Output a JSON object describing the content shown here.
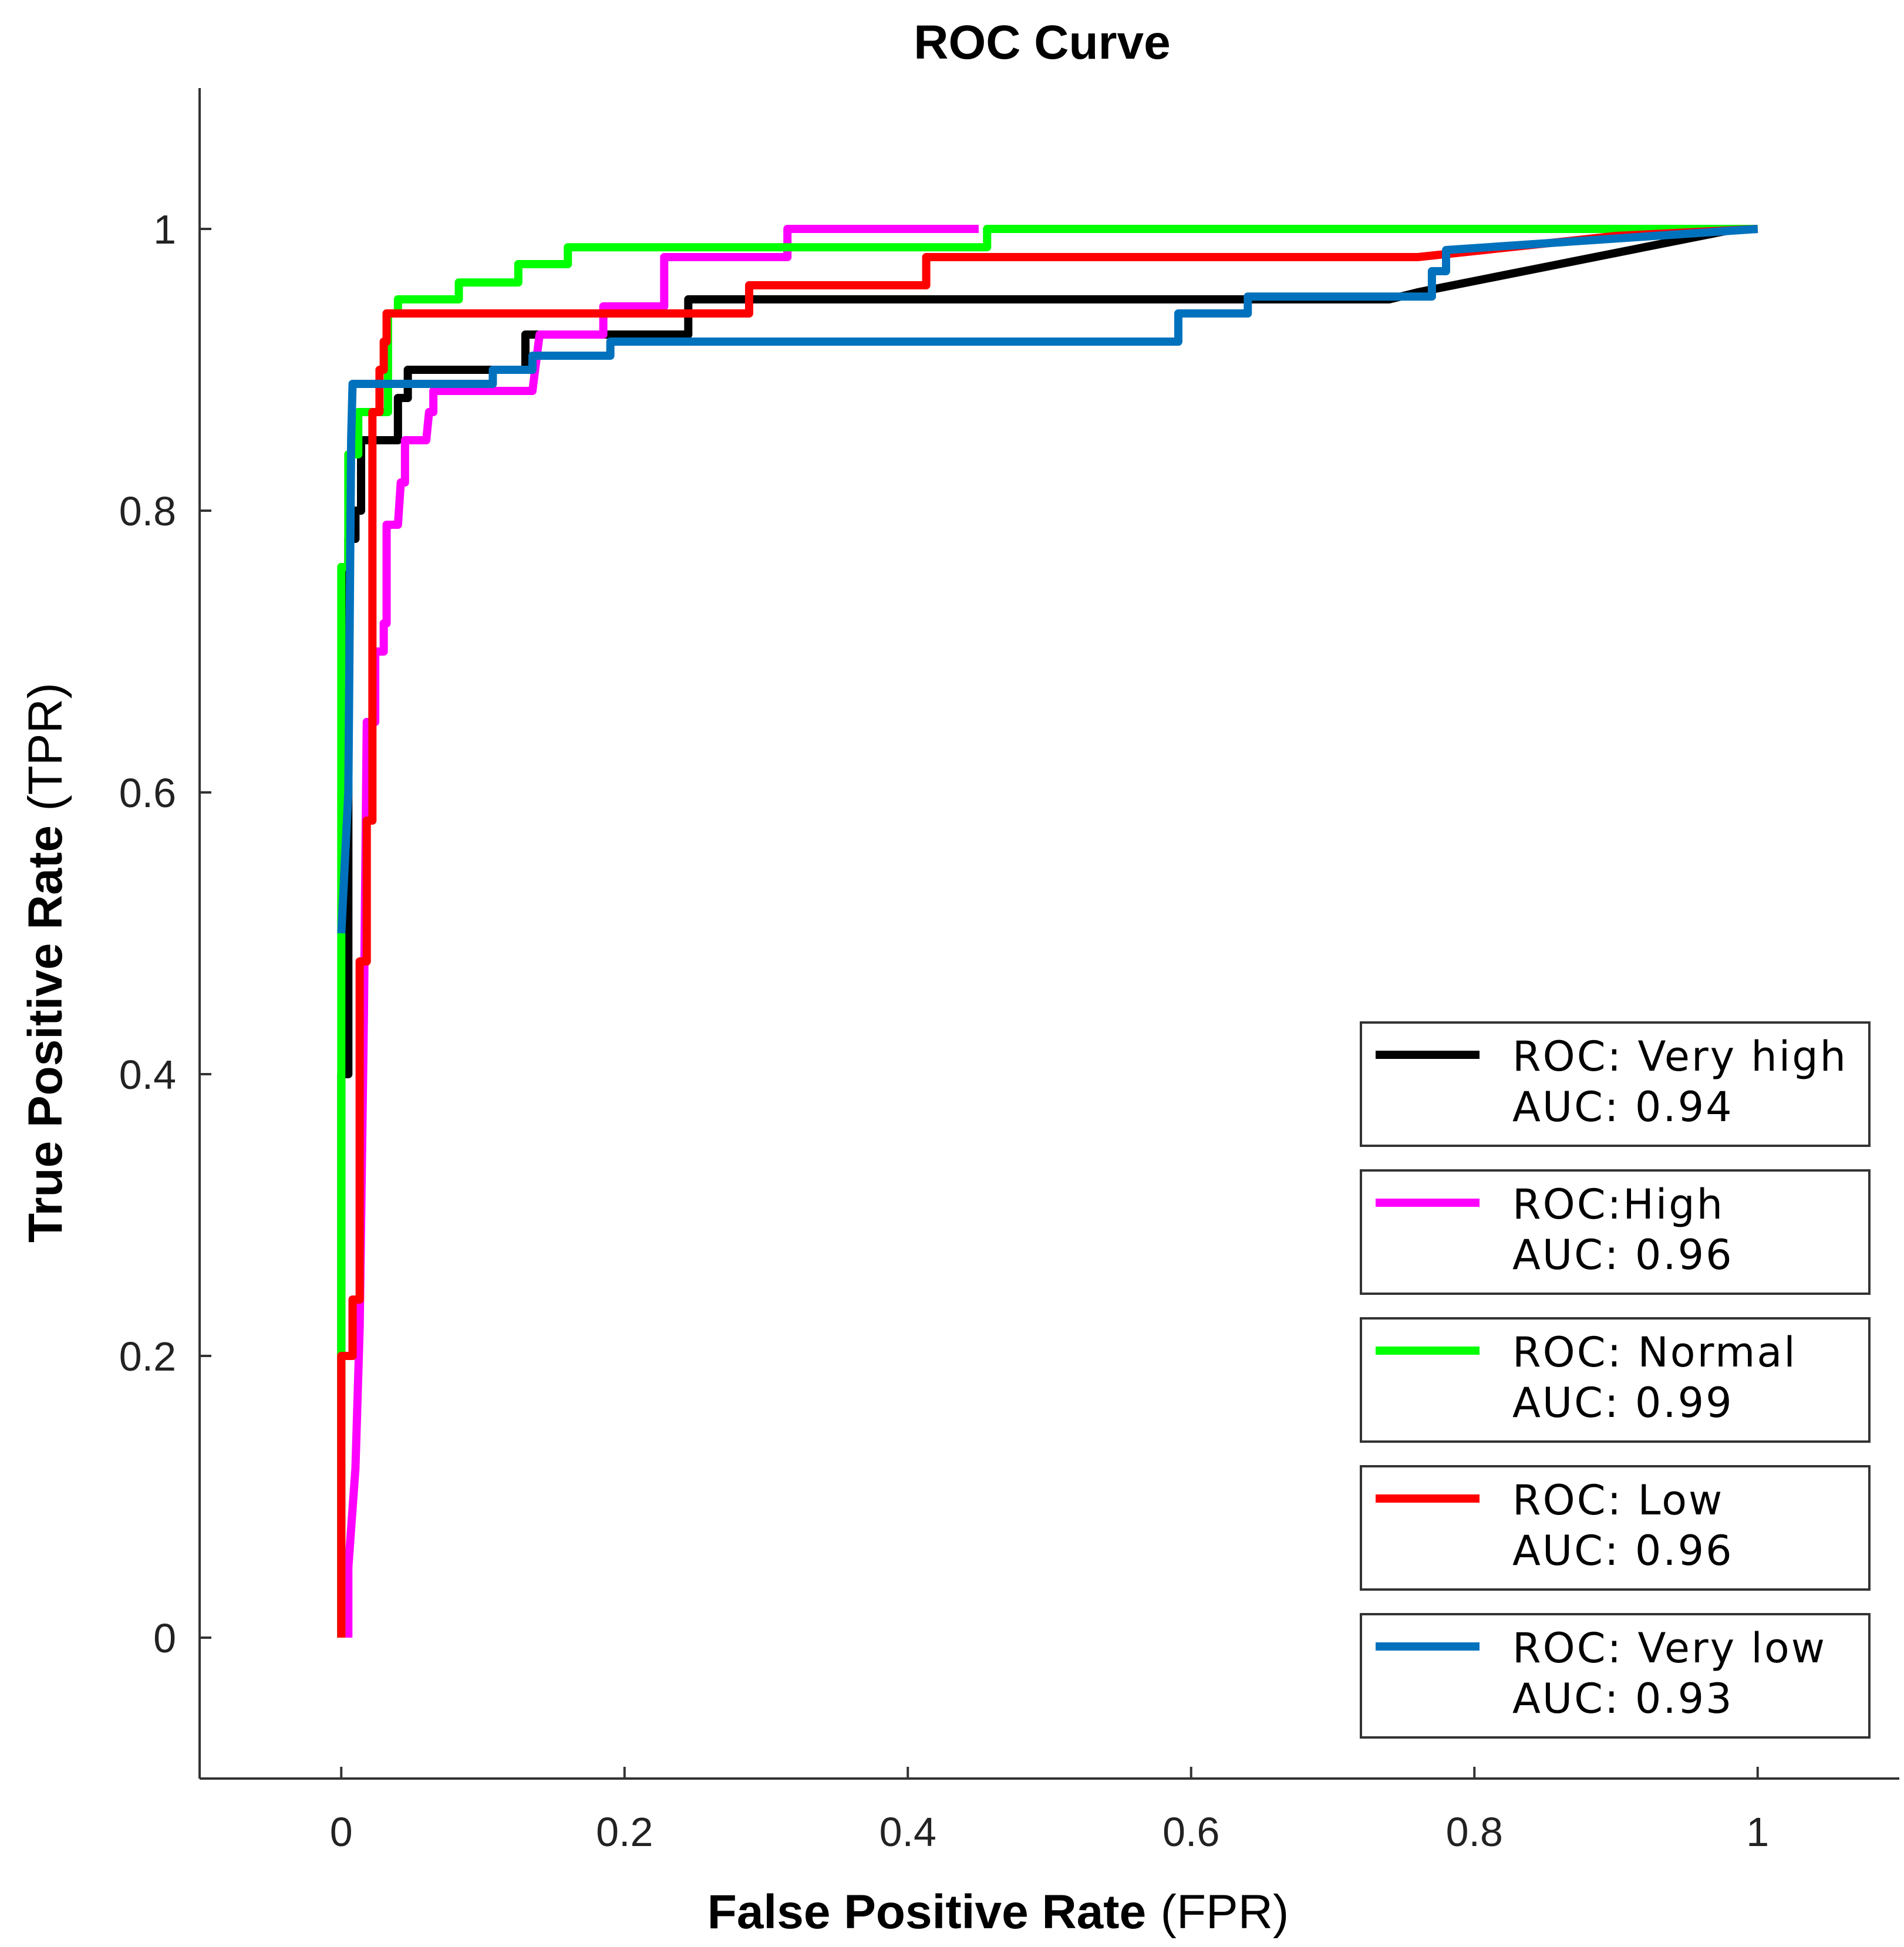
{
  "chart_data": {
    "type": "line",
    "title": "ROC Curve",
    "xlabel": {
      "bold": "False Positive Rate",
      "plain": "(FPR)"
    },
    "ylabel": {
      "bold": "True Positive Rate",
      "plain": "(TPR)"
    },
    "xlim": [
      -0.1,
      1.1
    ],
    "ylim": [
      -0.1,
      1.1
    ],
    "xticks": [
      0,
      0.2,
      0.4,
      0.6,
      0.8,
      1
    ],
    "xtick_labels": [
      "0",
      "0.2",
      "0.4",
      "0.6",
      "0.8",
      "1"
    ],
    "yticks": [
      0,
      0.2,
      0.4,
      0.6,
      0.8,
      1
    ],
    "ytick_labels": [
      "0",
      "0.2",
      "0.4",
      "0.6",
      "0.8",
      "1"
    ],
    "grid": false,
    "legend_position": "bottom-right",
    "series": [
      {
        "name": "ROC: Very high",
        "auc_label": "AUC: 0.94",
        "color": "#000000",
        "points": [
          [
            0,
            0
          ],
          [
            0,
            0.4
          ],
          [
            0.005,
            0.4
          ],
          [
            0.005,
            0.78
          ],
          [
            0.01,
            0.78
          ],
          [
            0.01,
            0.8
          ],
          [
            0.014,
            0.8
          ],
          [
            0.014,
            0.85
          ],
          [
            0.04,
            0.85
          ],
          [
            0.04,
            0.88
          ],
          [
            0.047,
            0.88
          ],
          [
            0.047,
            0.9
          ],
          [
            0.13,
            0.9
          ],
          [
            0.13,
            0.925
          ],
          [
            0.245,
            0.925
          ],
          [
            0.245,
            0.95
          ],
          [
            0.74,
            0.95
          ],
          [
            0.76,
            0.955
          ],
          [
            0.985,
            1
          ]
        ]
      },
      {
        "name": "ROC:High",
        "auc_label": "AUC: 0.96",
        "color": "#ff00ff",
        "points": [
          [
            0.005,
            0
          ],
          [
            0.005,
            0.05
          ],
          [
            0.01,
            0.12
          ],
          [
            0.013,
            0.22
          ],
          [
            0.016,
            0.44
          ],
          [
            0.018,
            0.65
          ],
          [
            0.024,
            0.65
          ],
          [
            0.024,
            0.7
          ],
          [
            0.03,
            0.7
          ],
          [
            0.03,
            0.72
          ],
          [
            0.032,
            0.72
          ],
          [
            0.032,
            0.79
          ],
          [
            0.04,
            0.79
          ],
          [
            0.042,
            0.82
          ],
          [
            0.045,
            0.82
          ],
          [
            0.045,
            0.85
          ],
          [
            0.06,
            0.85
          ],
          [
            0.062,
            0.87
          ],
          [
            0.065,
            0.87
          ],
          [
            0.065,
            0.885
          ],
          [
            0.135,
            0.885
          ],
          [
            0.14,
            0.925
          ],
          [
            0.185,
            0.925
          ],
          [
            0.185,
            0.945
          ],
          [
            0.228,
            0.945
          ],
          [
            0.228,
            0.98
          ],
          [
            0.315,
            0.98
          ],
          [
            0.315,
            1
          ],
          [
            0.45,
            1
          ]
        ]
      },
      {
        "name": "ROC: Normal",
        "auc_label": "AUC: 0.99",
        "color": "#00ff00",
        "points": [
          [
            0,
            0
          ],
          [
            0,
            0.76
          ],
          [
            0.005,
            0.76
          ],
          [
            0.005,
            0.84
          ],
          [
            0.012,
            0.84
          ],
          [
            0.012,
            0.87
          ],
          [
            0.033,
            0.87
          ],
          [
            0.033,
            0.94
          ],
          [
            0.04,
            0.94
          ],
          [
            0.04,
            0.95
          ],
          [
            0.083,
            0.95
          ],
          [
            0.083,
            0.962
          ],
          [
            0.125,
            0.962
          ],
          [
            0.125,
            0.975
          ],
          [
            0.16,
            0.975
          ],
          [
            0.16,
            0.987
          ],
          [
            0.456,
            0.987
          ],
          [
            0.456,
            1
          ],
          [
            1,
            1
          ]
        ]
      },
      {
        "name": "ROC: Low",
        "auc_label": "AUC: 0.96",
        "color": "#ff0000",
        "points": [
          [
            0,
            0
          ],
          [
            0,
            0.2
          ],
          [
            0.008,
            0.2
          ],
          [
            0.008,
            0.24
          ],
          [
            0.013,
            0.24
          ],
          [
            0.013,
            0.48
          ],
          [
            0.018,
            0.48
          ],
          [
            0.018,
            0.58
          ],
          [
            0.022,
            0.58
          ],
          [
            0.022,
            0.87
          ],
          [
            0.027,
            0.87
          ],
          [
            0.027,
            0.9
          ],
          [
            0.03,
            0.9
          ],
          [
            0.03,
            0.92
          ],
          [
            0.032,
            0.92
          ],
          [
            0.032,
            0.94
          ],
          [
            0.288,
            0.94
          ],
          [
            0.288,
            0.96
          ],
          [
            0.413,
            0.96
          ],
          [
            0.413,
            0.98
          ],
          [
            0.76,
            0.98
          ],
          [
            0.9,
            0.995
          ],
          [
            1,
            1
          ]
        ]
      },
      {
        "name": "ROC: Very low",
        "auc_label": "AUC: 0.93",
        "color": "#0072bd",
        "points": [
          [
            0,
            0.5
          ],
          [
            0.005,
            0.6
          ],
          [
            0.007,
            0.85
          ],
          [
            0.008,
            0.89
          ],
          [
            0.02,
            0.89
          ],
          [
            0.02,
            0.89
          ],
          [
            0.107,
            0.89
          ],
          [
            0.107,
            0.9
          ],
          [
            0.135,
            0.9
          ],
          [
            0.135,
            0.91
          ],
          [
            0.19,
            0.91
          ],
          [
            0.19,
            0.92
          ],
          [
            0.591,
            0.92
          ],
          [
            0.591,
            0.94
          ],
          [
            0.64,
            0.94
          ],
          [
            0.64,
            0.952
          ],
          [
            0.77,
            0.952
          ],
          [
            0.77,
            0.97
          ],
          [
            0.78,
            0.97
          ],
          [
            0.78,
            0.985
          ],
          [
            1,
            1
          ]
        ]
      }
    ]
  }
}
